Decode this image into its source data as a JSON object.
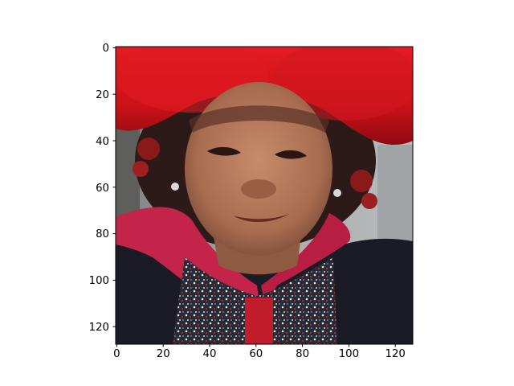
{
  "chart_data": {
    "type": "image",
    "title": "",
    "xlabel": "",
    "ylabel": "",
    "image_size": [
      128,
      128
    ],
    "xlim": [
      0,
      128
    ],
    "ylim": [
      128,
      0
    ],
    "y_axis_inverted": true,
    "grid": false,
    "x_ticks": [
      "0",
      "20",
      "40",
      "60",
      "80",
      "100",
      "120"
    ],
    "y_ticks": [
      "0",
      "20",
      "40",
      "60",
      "80",
      "100",
      "120"
    ],
    "image_content": "photo-portrait",
    "colors": {
      "hat_red": "#d3141c",
      "skin": "#b07a5c",
      "background_gray": "#9a9ea0",
      "scarf_pink": "#c4244a",
      "dark_cloth": "#1b1b25"
    }
  }
}
